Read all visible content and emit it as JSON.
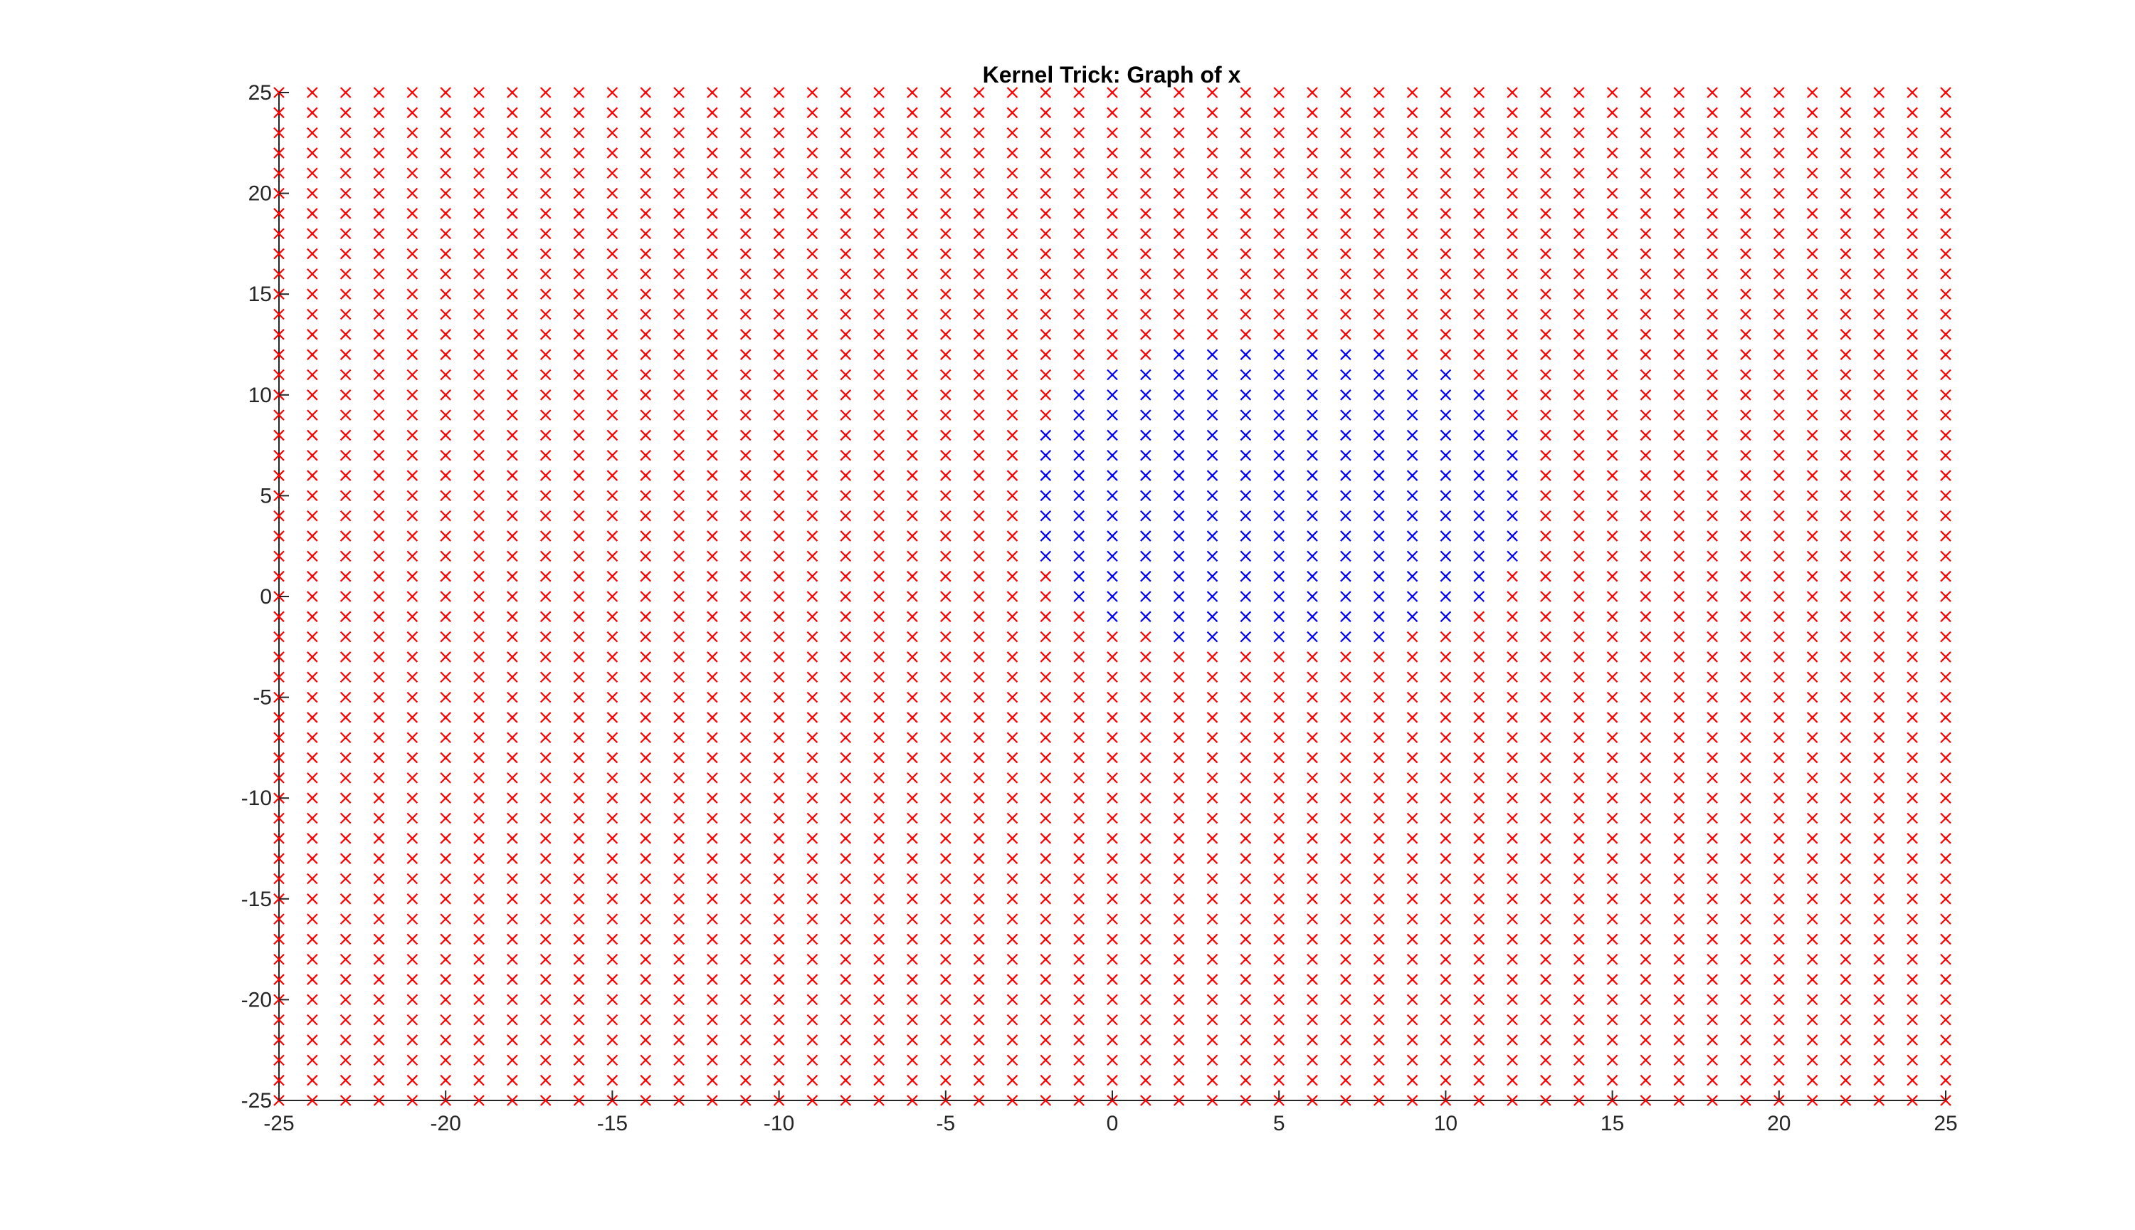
{
  "chart_data": {
    "type": "scatter",
    "title": "Kernel Trick: Graph of x",
    "xlabel": "",
    "ylabel": "",
    "xlim": [
      -25,
      25
    ],
    "ylim": [
      -25,
      25
    ],
    "xticks": [
      -25,
      -20,
      -15,
      -10,
      -5,
      0,
      5,
      10,
      15,
      20,
      25
    ],
    "yticks": [
      -25,
      -20,
      -15,
      -10,
      -5,
      0,
      5,
      10,
      15,
      20,
      25
    ],
    "grid": false,
    "marker": "x",
    "point_grid": {
      "x_min": -25,
      "x_max": 25,
      "x_step": 1,
      "y_min": -25,
      "y_max": 25,
      "y_step": 1
    },
    "series": [
      {
        "color": "#ff0000",
        "rule": "all grid points not in the blue set"
      },
      {
        "color": "#0000ff",
        "rule": "grid points with (x-5)^2 + (y-5)^2 < 64"
      }
    ],
    "inner_region": {
      "center": [
        5,
        5
      ],
      "radius": 8
    }
  }
}
